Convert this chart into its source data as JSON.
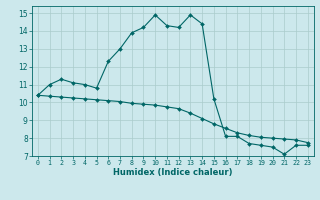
{
  "xlabel": "Humidex (Indice chaleur)",
  "bg_color": "#cce8ec",
  "grid_color": "#aacccc",
  "line_color": "#006666",
  "xlim": [
    -0.5,
    23.5
  ],
  "ylim": [
    7,
    15.4
  ],
  "x_ticks": [
    0,
    1,
    2,
    3,
    4,
    5,
    6,
    7,
    8,
    9,
    10,
    11,
    12,
    13,
    14,
    15,
    16,
    17,
    18,
    19,
    20,
    21,
    22,
    23
  ],
  "y_ticks": [
    7,
    8,
    9,
    10,
    11,
    12,
    13,
    14,
    15
  ],
  "series1_x": [
    0,
    1,
    2,
    3,
    4,
    5,
    6,
    7,
    8,
    9,
    10,
    11,
    12,
    13,
    14,
    15,
    16,
    17,
    18,
    19,
    20,
    21,
    22,
    23
  ],
  "series1_y": [
    10.4,
    11.0,
    11.3,
    11.1,
    11.0,
    10.8,
    12.3,
    13.0,
    13.9,
    14.2,
    14.9,
    14.3,
    14.2,
    14.9,
    14.4,
    10.2,
    8.1,
    8.1,
    7.7,
    7.6,
    7.5,
    7.1,
    7.6,
    7.6
  ],
  "series2_x": [
    0,
    1,
    2,
    3,
    4,
    5,
    6,
    7,
    8,
    9,
    10,
    11,
    12,
    13,
    14,
    15,
    16,
    17,
    18,
    19,
    20,
    21,
    22,
    23
  ],
  "series2_y": [
    10.4,
    10.35,
    10.3,
    10.25,
    10.2,
    10.15,
    10.1,
    10.05,
    9.95,
    9.9,
    9.85,
    9.75,
    9.65,
    9.4,
    9.1,
    8.8,
    8.55,
    8.3,
    8.15,
    8.05,
    8.0,
    7.95,
    7.9,
    7.75
  ]
}
